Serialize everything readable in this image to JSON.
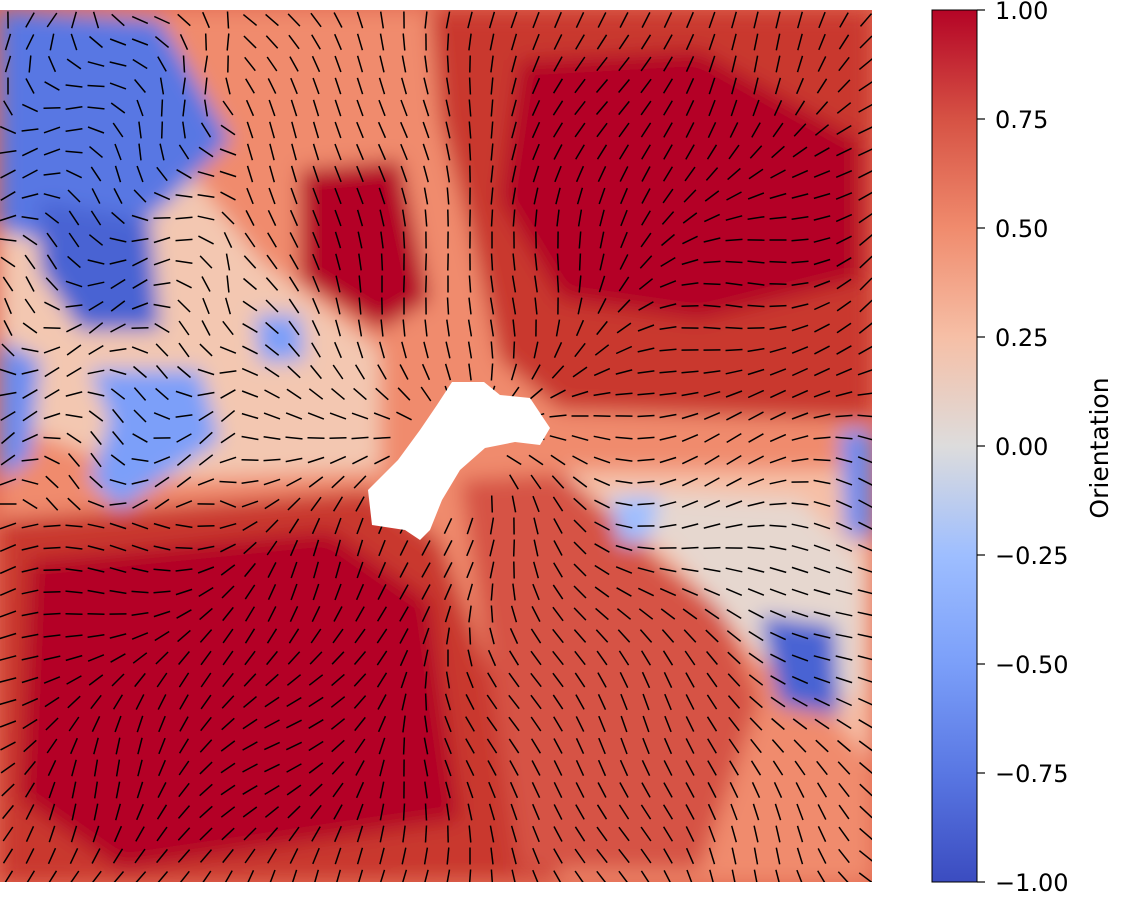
{
  "chart_data": {
    "type": "heatmap",
    "title": "",
    "xlabel": "",
    "ylabel": "",
    "colorbar": {
      "label": "Orientation",
      "range": [
        -1.0,
        1.0
      ],
      "colormap": "coolwarm",
      "ticks": [
        1.0,
        0.75,
        0.5,
        0.25,
        0.0,
        -0.25,
        -0.5,
        -0.75,
        -1.0
      ],
      "tick_labels": [
        "1.00",
        "0.75",
        "0.50",
        "0.25",
        "0.00",
        "−0.25",
        "−0.50",
        "−0.75",
        "−1.00"
      ]
    },
    "overlay": "director field (short black line segments)",
    "hole": "white region near centre of field"
  },
  "colors": {
    "low": "#3b4cc0",
    "mid": "#dddcdc",
    "high": "#b40426",
    "director": "#000000"
  }
}
